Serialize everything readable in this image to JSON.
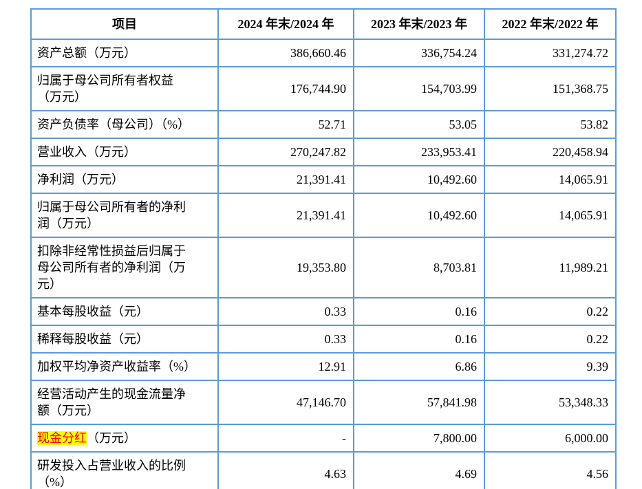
{
  "table": {
    "border_color": "#5B9BD5",
    "highlight": {
      "background": "#FFFF00",
      "text_color": "#FF0000"
    },
    "header": {
      "item_label": "项目",
      "year_columns": [
        "2024 年末/2024 年",
        "2023 年末/2023 年",
        "2022 年末/2022 年"
      ]
    },
    "rows": [
      {
        "label_parts": [
          {
            "text": "资产总额（万元）",
            "highlight": false
          }
        ],
        "values": [
          "386,660.46",
          "336,754.24",
          "331,274.72"
        ]
      },
      {
        "label_parts": [
          {
            "text": "归属于母公司所有者权益\n（万元）",
            "highlight": false
          }
        ],
        "values": [
          "176,744.90",
          "154,703.99",
          "151,368.75"
        ]
      },
      {
        "label_parts": [
          {
            "text": "资产负债率（母公司）（%）",
            "highlight": false
          }
        ],
        "values": [
          "52.71",
          "53.05",
          "53.82"
        ]
      },
      {
        "label_parts": [
          {
            "text": "营业收入（万元）",
            "highlight": false
          }
        ],
        "values": [
          "270,247.82",
          "233,953.41",
          "220,458.94"
        ]
      },
      {
        "label_parts": [
          {
            "text": "净利润（万元）",
            "highlight": false
          }
        ],
        "values": [
          "21,391.41",
          "10,492.60",
          "14,065.91"
        ]
      },
      {
        "label_parts": [
          {
            "text": "归属于母公司所有者的净利\n润（万元）",
            "highlight": false
          }
        ],
        "values": [
          "21,391.41",
          "10,492.60",
          "14,065.91"
        ]
      },
      {
        "label_parts": [
          {
            "text": "扣除非经常性损益后归属于\n母公司所有者的净利润（万\n元）",
            "highlight": false
          }
        ],
        "values": [
          "19,353.80",
          "8,703.81",
          "11,989.21"
        ]
      },
      {
        "label_parts": [
          {
            "text": "基本每股收益（元）",
            "highlight": false
          }
        ],
        "values": [
          "0.33",
          "0.16",
          "0.22"
        ]
      },
      {
        "label_parts": [
          {
            "text": "稀释每股收益（元）",
            "highlight": false
          }
        ],
        "values": [
          "0.33",
          "0.16",
          "0.22"
        ]
      },
      {
        "label_parts": [
          {
            "text": "加权平均净资产收益率（%）",
            "highlight": false
          }
        ],
        "values": [
          "12.91",
          "6.86",
          "9.39"
        ]
      },
      {
        "label_parts": [
          {
            "text": "经营活动产生的现金流量净\n额（万元）",
            "highlight": false
          }
        ],
        "values": [
          "47,146.70",
          "57,841.98",
          "53,348.33"
        ]
      },
      {
        "label_parts": [
          {
            "text": "现金分红",
            "highlight": true
          },
          {
            "text": "（万元）",
            "highlight": false
          }
        ],
        "values": [
          "-",
          "7,800.00",
          "6,000.00"
        ]
      },
      {
        "label_parts": [
          {
            "text": "研发投入占营业收入的比例\n（%）",
            "highlight": false
          }
        ],
        "values": [
          "4.63",
          "4.69",
          "4.56"
        ]
      }
    ]
  }
}
